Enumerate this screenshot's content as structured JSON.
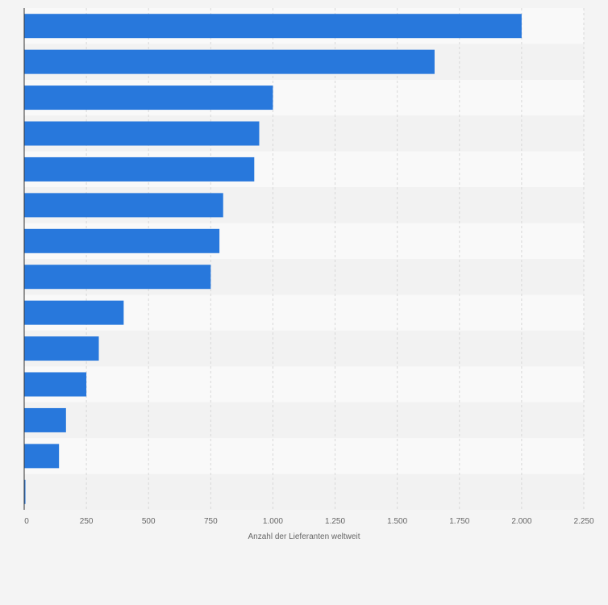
{
  "chart_data": {
    "type": "bar",
    "orientation": "horizontal",
    "title": "",
    "xlabel": "Anzahl der Lieferanten weltweit",
    "ylabel": "",
    "xlim": [
      0,
      2250
    ],
    "x_ticks": [
      0,
      250,
      500,
      750,
      1000,
      1250,
      1500,
      1750,
      2000,
      2250
    ],
    "x_tick_labels": [
      "0",
      "250",
      "500",
      "750",
      "1.000",
      "1.250",
      "1.500",
      "1.750",
      "2.000",
      "2.250"
    ],
    "categories": [
      "",
      "",
      "",
      "",
      "",
      "",
      "",
      "",
      "",
      "",
      "",
      "",
      "",
      ""
    ],
    "values": [
      2000,
      1650,
      1000,
      945,
      925,
      800,
      785,
      750,
      400,
      300,
      250,
      168,
      140,
      5
    ],
    "grid": true,
    "legend": "none"
  },
  "colors": {
    "bar": "#2878dc",
    "background": "#f4f4f4",
    "band_light": "#f9f9f9",
    "band_dark": "#f2f2f2",
    "grid": "#d8d8d8",
    "axis": "#333333",
    "text": "#666666"
  }
}
